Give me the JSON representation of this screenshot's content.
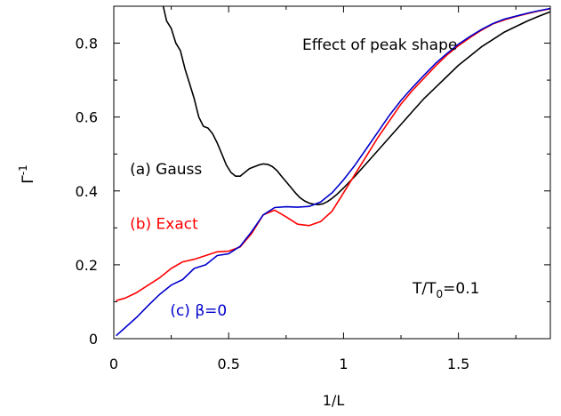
{
  "chart_data": {
    "type": "line",
    "title": "Effect of peak shape",
    "xlabel": "1/L",
    "ylabel_base": "Γ",
    "ylabel_sup": "-1",
    "xlim": [
      0,
      1.9
    ],
    "ylim": [
      0,
      0.9
    ],
    "x_ticks": [
      {
        "value": 0,
        "label": "0"
      },
      {
        "value": 0.5,
        "label": "0.5"
      },
      {
        "value": 1,
        "label": "1"
      },
      {
        "value": 1.5,
        "label": "1.5"
      }
    ],
    "y_ticks": [
      {
        "value": 0,
        "label": "0"
      },
      {
        "value": 0.2,
        "label": "0.2"
      },
      {
        "value": 0.4,
        "label": "0.4"
      },
      {
        "value": 0.6,
        "label": "0.6"
      },
      {
        "value": 0.8,
        "label": "0.8"
      }
    ],
    "grid": false,
    "annotations": {
      "temperature": {
        "pre": "T/T",
        "sub": "0",
        "post": "=0.1"
      }
    },
    "series": [
      {
        "name": "(a) Gauss",
        "color": "#000000",
        "label_pos": [
          0.07,
          0.445
        ],
        "x": [
          0.215,
          0.23,
          0.25,
          0.27,
          0.29,
          0.31,
          0.33,
          0.35,
          0.37,
          0.39,
          0.41,
          0.43,
          0.45,
          0.47,
          0.49,
          0.51,
          0.53,
          0.55,
          0.57,
          0.59,
          0.61,
          0.63,
          0.65,
          0.67,
          0.69,
          0.71,
          0.73,
          0.75,
          0.77,
          0.79,
          0.81,
          0.83,
          0.85,
          0.87,
          0.89,
          0.91,
          0.93,
          0.95,
          0.97,
          1.0,
          1.05,
          1.1,
          1.15,
          1.2,
          1.25,
          1.3,
          1.35,
          1.4,
          1.45,
          1.5,
          1.55,
          1.6,
          1.65,
          1.7,
          1.75,
          1.8,
          1.85,
          1.9
        ],
        "y": [
          0.9,
          0.86,
          0.84,
          0.8,
          0.78,
          0.73,
          0.69,
          0.65,
          0.6,
          0.575,
          0.57,
          0.555,
          0.53,
          0.5,
          0.47,
          0.45,
          0.44,
          0.44,
          0.45,
          0.46,
          0.465,
          0.47,
          0.473,
          0.472,
          0.466,
          0.455,
          0.44,
          0.425,
          0.41,
          0.395,
          0.382,
          0.373,
          0.367,
          0.364,
          0.363,
          0.365,
          0.371,
          0.38,
          0.39,
          0.408,
          0.44,
          0.475,
          0.51,
          0.545,
          0.58,
          0.615,
          0.65,
          0.68,
          0.71,
          0.74,
          0.765,
          0.79,
          0.81,
          0.83,
          0.845,
          0.86,
          0.873,
          0.885
        ]
      },
      {
        "name": "(b) Exact",
        "color": "#ff0000",
        "label_pos": [
          0.07,
          0.297
        ],
        "x": [
          0.01,
          0.05,
          0.1,
          0.15,
          0.2,
          0.25,
          0.3,
          0.35,
          0.4,
          0.45,
          0.5,
          0.55,
          0.6,
          0.65,
          0.7,
          0.75,
          0.8,
          0.85,
          0.9,
          0.95,
          1.0,
          1.05,
          1.1,
          1.15,
          1.2,
          1.25,
          1.3,
          1.35,
          1.4,
          1.45,
          1.5,
          1.55,
          1.6,
          1.65,
          1.7,
          1.75,
          1.8,
          1.85,
          1.9
        ],
        "y": [
          0.103,
          0.11,
          0.125,
          0.145,
          0.165,
          0.19,
          0.208,
          0.215,
          0.225,
          0.235,
          0.237,
          0.248,
          0.285,
          0.335,
          0.348,
          0.33,
          0.31,
          0.306,
          0.317,
          0.345,
          0.395,
          0.445,
          0.495,
          0.545,
          0.59,
          0.635,
          0.672,
          0.705,
          0.738,
          0.768,
          0.793,
          0.815,
          0.835,
          0.852,
          0.863,
          0.872,
          0.88,
          0.887,
          0.893
        ]
      },
      {
        "name": "(c) β=0",
        "color": "#0000cc",
        "label_pos": [
          0.245,
          0.063
        ],
        "x": [
          0.01,
          0.05,
          0.1,
          0.15,
          0.2,
          0.25,
          0.3,
          0.35,
          0.4,
          0.45,
          0.5,
          0.55,
          0.6,
          0.65,
          0.7,
          0.75,
          0.8,
          0.85,
          0.9,
          0.95,
          1.0,
          1.05,
          1.1,
          1.15,
          1.2,
          1.25,
          1.3,
          1.35,
          1.4,
          1.45,
          1.5,
          1.55,
          1.6,
          1.65,
          1.7,
          1.75,
          1.8,
          1.85,
          1.9
        ],
        "y": [
          0.008,
          0.03,
          0.058,
          0.09,
          0.12,
          0.145,
          0.16,
          0.19,
          0.2,
          0.225,
          0.23,
          0.25,
          0.29,
          0.335,
          0.355,
          0.357,
          0.356,
          0.358,
          0.37,
          0.395,
          0.43,
          0.47,
          0.515,
          0.56,
          0.605,
          0.645,
          0.68,
          0.713,
          0.745,
          0.772,
          0.797,
          0.818,
          0.837,
          0.853,
          0.865,
          0.873,
          0.881,
          0.888,
          0.894
        ]
      }
    ]
  }
}
